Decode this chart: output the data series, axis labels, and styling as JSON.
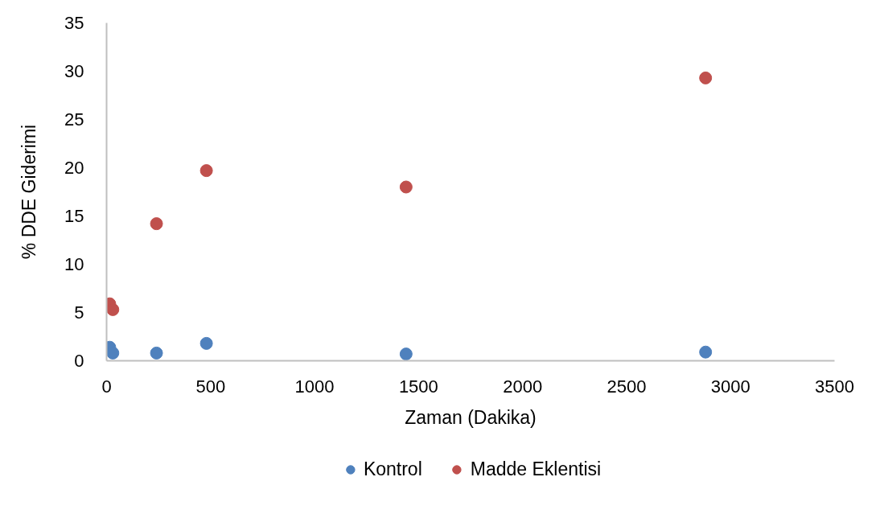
{
  "chart_data": {
    "type": "scatter",
    "xlabel": "Zaman (Dakika)",
    "ylabel": "% DDE Giderimi",
    "x": [
      15,
      30,
      240,
      480,
      1440,
      2880
    ],
    "series": [
      {
        "name": "Kontrol",
        "color": "#4f81bd",
        "values": [
          1.4,
          0.8,
          0.8,
          1.8,
          0.7,
          0.9
        ]
      },
      {
        "name": "Madde Eklentisi",
        "color": "#c0504d",
        "values": [
          5.9,
          5.3,
          14.2,
          19.7,
          18.0,
          29.3
        ]
      }
    ],
    "xlim": [
      0,
      3500
    ],
    "ylim": [
      0,
      35
    ],
    "xticks": [
      0,
      500,
      1000,
      1500,
      2000,
      2500,
      3000,
      3500
    ],
    "yticks": [
      0,
      5,
      10,
      15,
      20,
      25,
      30,
      35
    ],
    "grid": false,
    "legend": "bottom",
    "marker": "circle"
  }
}
